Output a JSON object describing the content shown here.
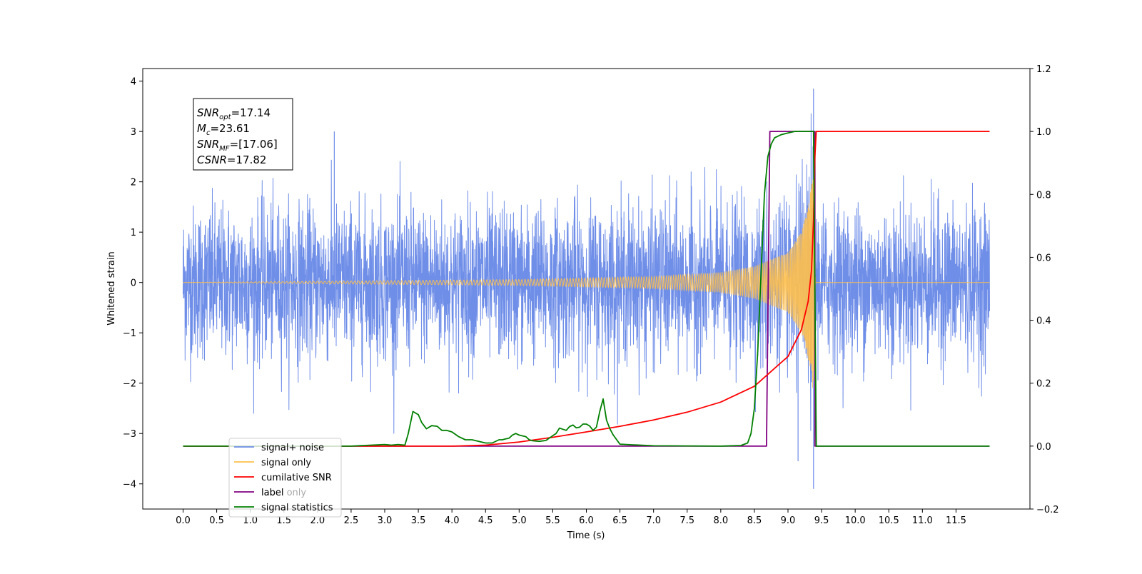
{
  "chart_data": {
    "type": "line",
    "xlabel": "Time (s)",
    "ylabel_left": "Whitened strain",
    "ylabel_right": "",
    "xlim": [
      -0.6,
      12.6
    ],
    "ylim_left": [
      -4.5,
      4.25
    ],
    "ylim_right": [
      -0.2,
      1.2
    ],
    "x_ticks": [
      "0.0",
      "0.5",
      "1.0",
      "1.5",
      "2.0",
      "2.5",
      "3.0",
      "3.5",
      "4.0",
      "4.5",
      "5.0",
      "5.5",
      "6.0",
      "6.5",
      "7.0",
      "7.5",
      "8.0",
      "8.5",
      "9.0",
      "9.5",
      "10.0",
      "10.5",
      "11.0",
      "11.5"
    ],
    "y_ticks_left": [
      "4",
      "3",
      "2",
      "1",
      "0",
      "−1",
      "−2",
      "−3",
      "−4"
    ],
    "y_ticks_right": [
      "1.2",
      "1.0",
      "0.8",
      "0.6",
      "0.4",
      "0.2",
      "0.0",
      "−0.2"
    ],
    "grid": false,
    "legend_position": "lower-left",
    "info_box": {
      "lines": [
        {
          "name": "SNR",
          "sub": "opt",
          "value": "=17.14"
        },
        {
          "name": "M",
          "sub": "c",
          "value": "=23.61"
        },
        {
          "name": "SNR",
          "sub": "MF",
          "value": "=[17.06]"
        },
        {
          "name": "CSNR",
          "sub": "",
          "value": "=17.82"
        }
      ]
    },
    "legend": [
      {
        "label": "signal+ noise",
        "color": "#6f8ee8"
      },
      {
        "label": "signal only",
        "color": "#ffc04d"
      },
      {
        "label": "cumilative SNR",
        "color": "#ff0000"
      },
      {
        "label": "label",
        "color": "#800080"
      },
      {
        "label": "signal statistics",
        "color": "#008000"
      }
    ],
    "legend_hidden_text": "label only",
    "series": [
      {
        "name": "signal+ noise",
        "axis": "left",
        "color": "#6f8ee8",
        "x_range": [
          0.0,
          12.0
        ],
        "noise_std": 0.75,
        "noise_range": [
          -4.1,
          3.9
        ],
        "notable_peaks": [
          [
            9.38,
            3.85
          ],
          [
            9.38,
            -4.1
          ],
          [
            9.15,
            -3.55
          ],
          [
            2.25,
            3.0
          ]
        ]
      },
      {
        "name": "signal only",
        "axis": "left",
        "color": "#ffc04d",
        "chirp_start": 0.0,
        "merger_time": 9.4,
        "ringdown_end": 9.42,
        "amplitude": [
          [
            0.0,
            0.0
          ],
          [
            5.0,
            0.06
          ],
          [
            7.0,
            0.12
          ],
          [
            8.0,
            0.2
          ],
          [
            8.5,
            0.32
          ],
          [
            9.0,
            0.6
          ],
          [
            9.2,
            1.0
          ],
          [
            9.3,
            1.5
          ],
          [
            9.38,
            2.2
          ],
          [
            9.41,
            0.0
          ]
        ]
      },
      {
        "name": "cumilative SNR",
        "axis": "right",
        "color": "#ff0000",
        "x": [
          0.0,
          4.0,
          4.5,
          5.0,
          5.5,
          6.0,
          6.5,
          7.0,
          7.5,
          8.0,
          8.5,
          9.0,
          9.2,
          9.3,
          9.35,
          9.38,
          9.4,
          9.42,
          12.0
        ],
        "y": [
          0.0,
          0.0,
          0.003,
          0.013,
          0.028,
          0.045,
          0.063,
          0.083,
          0.108,
          0.14,
          0.19,
          0.285,
          0.37,
          0.46,
          0.56,
          0.72,
          0.92,
          1.0,
          1.0
        ]
      },
      {
        "name": "label",
        "axis": "right",
        "color": "#800080",
        "x": [
          0.0,
          8.68,
          8.73,
          9.4,
          9.4,
          12.0
        ],
        "y": [
          0.0,
          0.0,
          1.0,
          1.0,
          0.0,
          0.0
        ]
      },
      {
        "name": "signal statistics",
        "axis": "right",
        "color": "#008000",
        "x": [
          0.0,
          2.5,
          2.8,
          3.0,
          3.1,
          3.2,
          3.3,
          3.35,
          3.42,
          3.5,
          3.55,
          3.62,
          3.7,
          3.78,
          3.85,
          3.92,
          4.0,
          4.1,
          4.2,
          4.3,
          4.4,
          4.5,
          4.6,
          4.7,
          4.75,
          4.8,
          4.85,
          4.9,
          4.95,
          5.0,
          5.1,
          5.15,
          5.2,
          5.3,
          5.4,
          5.5,
          5.55,
          5.6,
          5.7,
          5.75,
          5.8,
          5.85,
          5.9,
          5.95,
          6.0,
          6.05,
          6.1,
          6.15,
          6.2,
          6.25,
          6.3,
          6.35,
          6.4,
          6.5,
          6.7,
          7.0,
          8.0,
          8.3,
          8.4,
          8.45,
          8.5,
          8.55,
          8.6,
          8.65,
          8.7,
          8.75,
          8.8,
          8.85,
          8.9,
          9.0,
          9.1,
          9.35,
          9.38,
          9.42,
          12.0
        ],
        "y": [
          0.0,
          0.0,
          0.003,
          0.005,
          0.003,
          0.005,
          0.003,
          0.04,
          0.11,
          0.1,
          0.075,
          0.055,
          0.065,
          0.063,
          0.05,
          0.05,
          0.045,
          0.03,
          0.02,
          0.02,
          0.015,
          0.01,
          0.01,
          0.02,
          0.02,
          0.023,
          0.025,
          0.035,
          0.04,
          0.035,
          0.03,
          0.02,
          0.017,
          0.015,
          0.018,
          0.033,
          0.04,
          0.057,
          0.05,
          0.062,
          0.067,
          0.058,
          0.06,
          0.07,
          0.07,
          0.064,
          0.05,
          0.06,
          0.11,
          0.15,
          0.082,
          0.055,
          0.035,
          0.006,
          0.004,
          0.001,
          0.0,
          0.002,
          0.01,
          0.04,
          0.12,
          0.3,
          0.55,
          0.8,
          0.92,
          0.96,
          0.98,
          0.985,
          0.99,
          0.995,
          1.0,
          1.0,
          1.0,
          0.0,
          0.0
        ]
      }
    ]
  }
}
